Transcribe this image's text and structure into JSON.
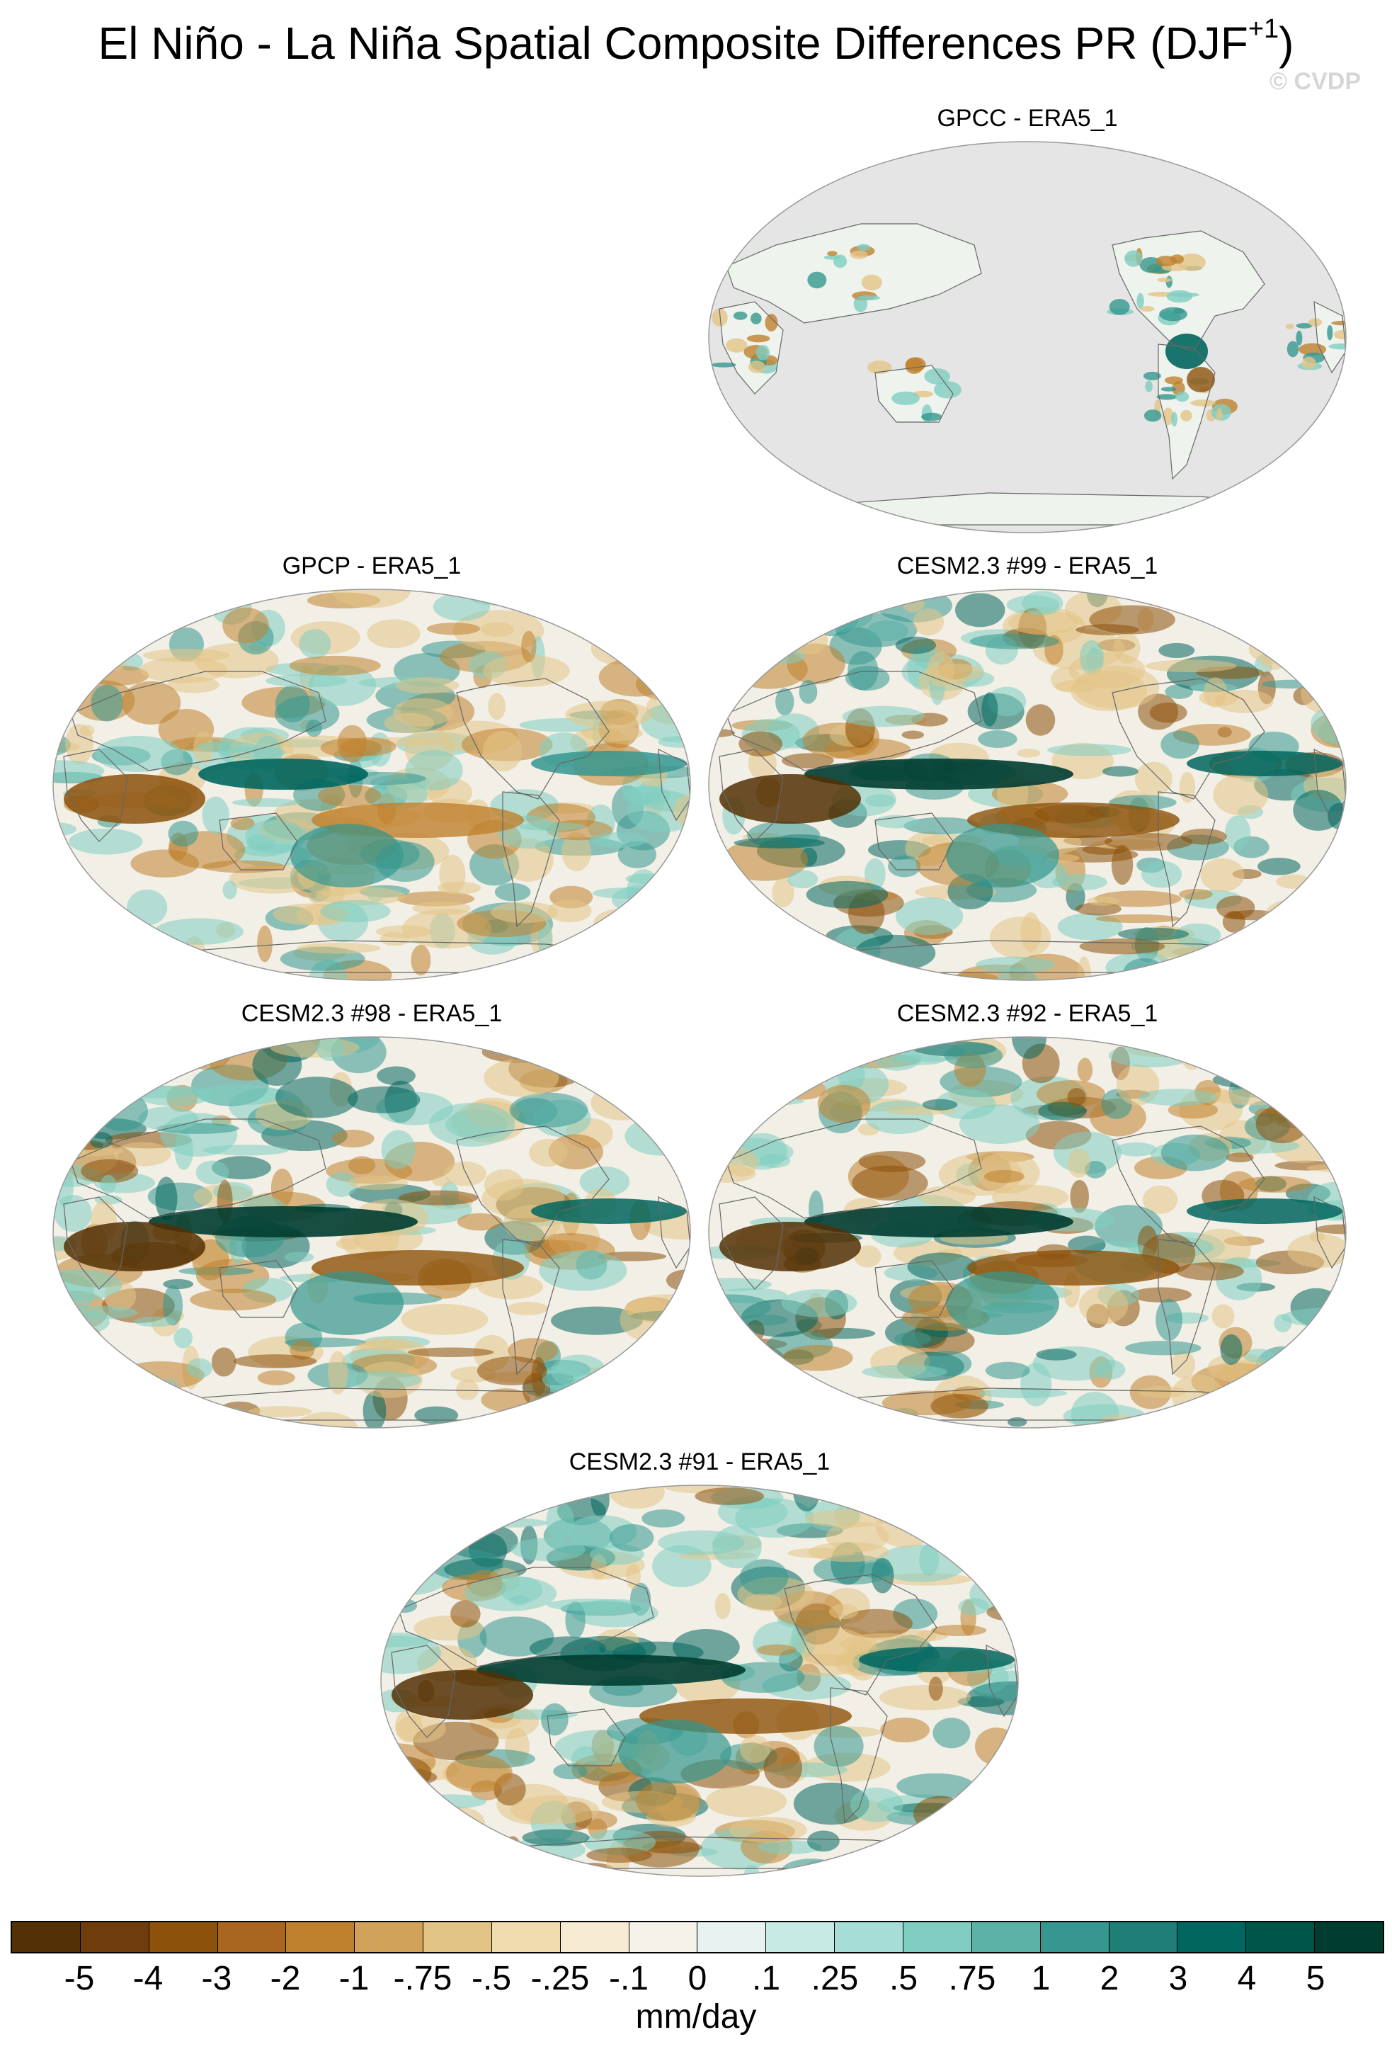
{
  "title": "El Niño - La Niña Spatial Composite Differences PR (DJF",
  "title_sup": "+1",
  "title_close": ")",
  "watermark": "© CVDP",
  "panels": [
    {
      "title": "GPCC - ERA5_1",
      "type": "land-only"
    },
    {
      "title": "GPCP - ERA5_1",
      "type": "global"
    },
    {
      "title": "CESM2.3 #99 - ERA5_1",
      "type": "global-strong"
    },
    {
      "title": "CESM2.3 #98 - ERA5_1",
      "type": "global-strong"
    },
    {
      "title": "CESM2.3 #92 - ERA5_1",
      "type": "global-strong"
    },
    {
      "title": "CESM2.3 #91 - ERA5_1",
      "type": "global-strong"
    }
  ],
  "colorbar": {
    "colors": [
      "#543005",
      "#6e3d0b",
      "#8c510a",
      "#a86620",
      "#bf812d",
      "#d1a35a",
      "#e3c487",
      "#f0dcaf",
      "#f6ebd2",
      "#f5f2ea",
      "#e8f3f1",
      "#c7eae5",
      "#a6ddd6",
      "#80cdc1",
      "#5bb3a8",
      "#35978f",
      "#1f7f77",
      "#01665e",
      "#00554a",
      "#003c30"
    ],
    "labels": [
      "-5",
      "-4",
      "-3",
      "-2",
      "-1",
      "-.75",
      "-.5",
      "-.25",
      "-.1",
      "0",
      ".1",
      ".25",
      ".5",
      ".75",
      "1",
      "2",
      "3",
      "4",
      "5"
    ],
    "units": "mm/day"
  }
}
